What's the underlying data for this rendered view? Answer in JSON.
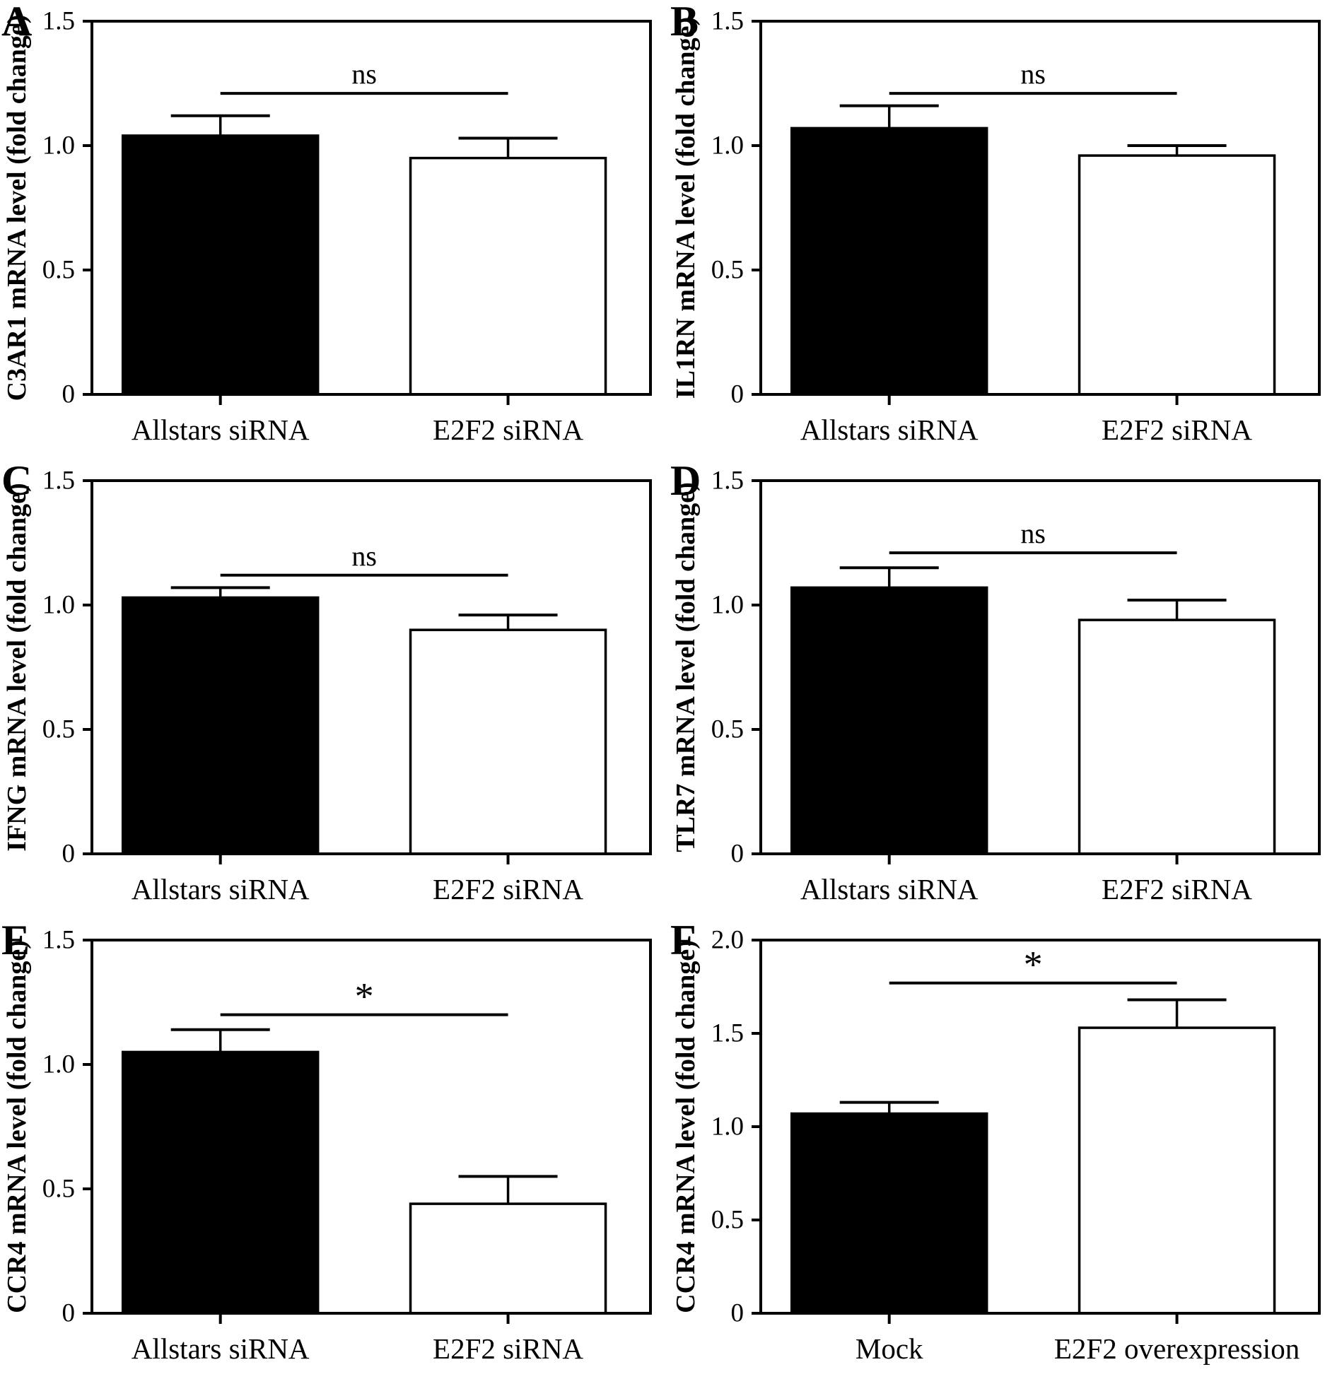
{
  "figure": {
    "background": "#ffffff",
    "axis_color": "#000000",
    "bar_outline_color": "#000000"
  },
  "chart_data": [
    {
      "panel": "A",
      "type": "bar",
      "ylabel": "C3AR1 mRNA level (fold change)",
      "xlabel": "",
      "categories": [
        "Allstars siRNA",
        "E2F2 siRNA"
      ],
      "values": [
        1.04,
        0.95
      ],
      "error_upper": [
        1.12,
        1.03
      ],
      "bar_fills": [
        "#000000",
        "#ffffff"
      ],
      "ylim": [
        0,
        1.5
      ],
      "yticks": [
        0,
        0.5,
        1.0,
        1.5
      ],
      "ytick_labels": [
        "0",
        "0.5",
        "1.0",
        "1.5"
      ],
      "significance": {
        "label": "ns",
        "bracket_y": 1.21
      },
      "grid": false,
      "legend": false
    },
    {
      "panel": "B",
      "type": "bar",
      "ylabel": "IL1RN mRNA level (fold change)",
      "xlabel": "",
      "categories": [
        "Allstars siRNA",
        "E2F2 siRNA"
      ],
      "values": [
        1.07,
        0.96
      ],
      "error_upper": [
        1.16,
        1.0
      ],
      "bar_fills": [
        "#000000",
        "#ffffff"
      ],
      "ylim": [
        0,
        1.5
      ],
      "yticks": [
        0,
        0.5,
        1.0,
        1.5
      ],
      "ytick_labels": [
        "0",
        "0.5",
        "1.0",
        "1.5"
      ],
      "significance": {
        "label": "ns",
        "bracket_y": 1.21
      },
      "grid": false,
      "legend": false
    },
    {
      "panel": "C",
      "type": "bar",
      "ylabel": "IFNG mRNA level (fold change)",
      "xlabel": "",
      "categories": [
        "Allstars siRNA",
        "E2F2 siRNA"
      ],
      "values": [
        1.03,
        0.9
      ],
      "error_upper": [
        1.07,
        0.96
      ],
      "bar_fills": [
        "#000000",
        "#ffffff"
      ],
      "ylim": [
        0,
        1.5
      ],
      "yticks": [
        0,
        0.5,
        1.0,
        1.5
      ],
      "ytick_labels": [
        "0",
        "0.5",
        "1.0",
        "1.5"
      ],
      "significance": {
        "label": "ns",
        "bracket_y": 1.12
      },
      "grid": false,
      "legend": false
    },
    {
      "panel": "D",
      "type": "bar",
      "ylabel": "TLR7 mRNA level (fold change)",
      "xlabel": "",
      "categories": [
        "Allstars siRNA",
        "E2F2 siRNA"
      ],
      "values": [
        1.07,
        0.94
      ],
      "error_upper": [
        1.15,
        1.02
      ],
      "bar_fills": [
        "#000000",
        "#ffffff"
      ],
      "ylim": [
        0,
        1.5
      ],
      "yticks": [
        0,
        0.5,
        1.0,
        1.5
      ],
      "ytick_labels": [
        "0",
        "0.5",
        "1.0",
        "1.5"
      ],
      "significance": {
        "label": "ns",
        "bracket_y": 1.21
      },
      "grid": false,
      "legend": false
    },
    {
      "panel": "E",
      "type": "bar",
      "ylabel": "CCR4 mRNA level (fold change)",
      "xlabel": "",
      "categories": [
        "Allstars siRNA",
        "E2F2 siRNA"
      ],
      "values": [
        1.05,
        0.44
      ],
      "error_upper": [
        1.14,
        0.55
      ],
      "bar_fills": [
        "#000000",
        "#ffffff"
      ],
      "ylim": [
        0,
        1.5
      ],
      "yticks": [
        0,
        0.5,
        1.0,
        1.5
      ],
      "ytick_labels": [
        "0",
        "0.5",
        "1.0",
        "1.5"
      ],
      "significance": {
        "label": "*",
        "bracket_y": 1.2
      },
      "grid": false,
      "legend": false
    },
    {
      "panel": "F",
      "type": "bar",
      "ylabel": "CCR4 mRNA level (fold change)",
      "xlabel": "",
      "categories": [
        "Mock",
        "E2F2 overexpression"
      ],
      "values": [
        1.07,
        1.53
      ],
      "error_upper": [
        1.13,
        1.68
      ],
      "bar_fills": [
        "#000000",
        "#ffffff"
      ],
      "ylim": [
        0,
        2.0
      ],
      "yticks": [
        0,
        0.5,
        1.0,
        1.5,
        2.0
      ],
      "ytick_labels": [
        "0",
        "0.5",
        "1.0",
        "1.5",
        "2.0"
      ],
      "significance": {
        "label": "*",
        "bracket_y": 1.77
      },
      "grid": false,
      "legend": false
    }
  ]
}
